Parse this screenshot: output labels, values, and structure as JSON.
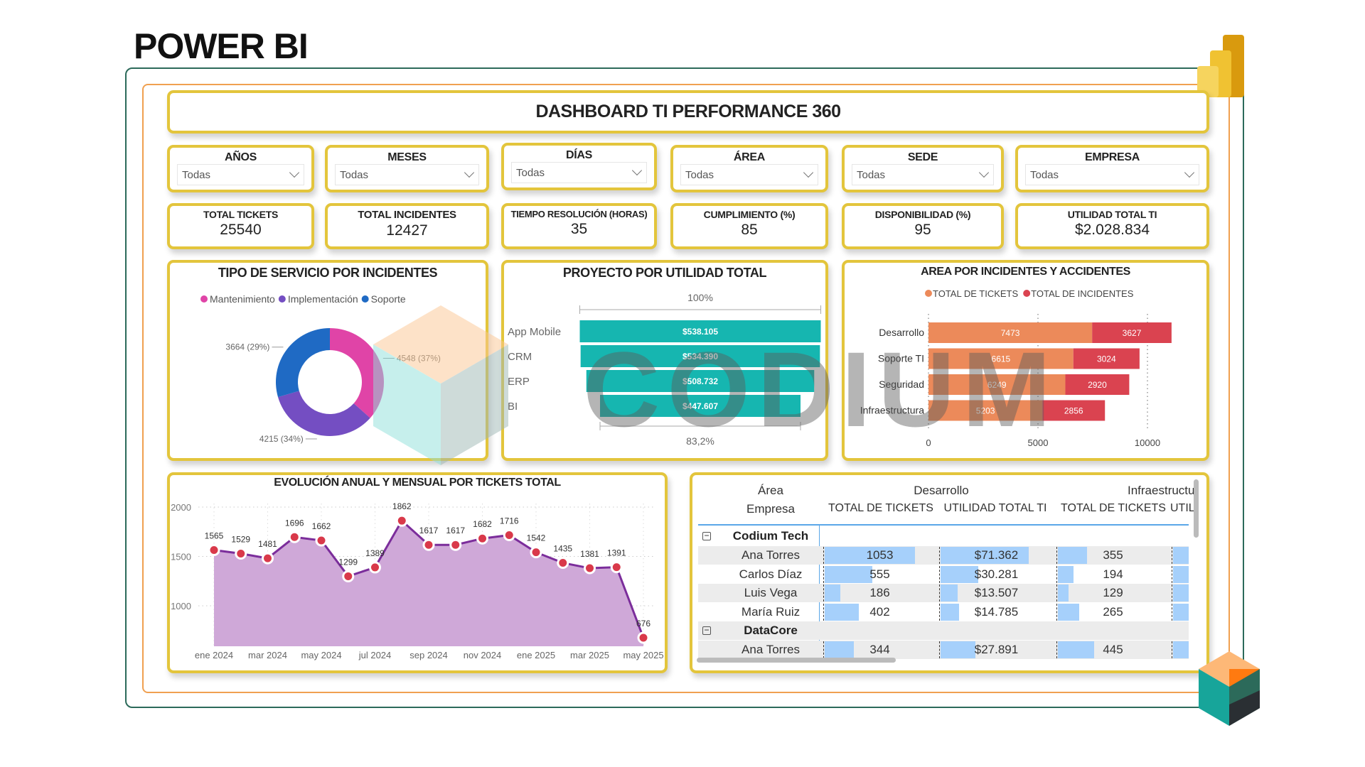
{
  "header": {
    "brand": "POWER BI"
  },
  "dashboard": {
    "title": "DASHBOARD TI PERFORMANCE 360"
  },
  "watermark": {
    "text": "CODIUM"
  },
  "filters": [
    {
      "label": "AÑOS",
      "value": "Todas"
    },
    {
      "label": "MESES",
      "value": "Todas"
    },
    {
      "label": "DÍAS",
      "value": "Todas"
    },
    {
      "label": "ÁREA",
      "value": "Todas"
    },
    {
      "label": "SEDE",
      "value": "Todas"
    },
    {
      "label": "EMPRESA",
      "value": "Todas"
    }
  ],
  "kpis": [
    {
      "label": "TOTAL TICKETS",
      "value": "25540"
    },
    {
      "label": "TOTAL INCIDENTES",
      "value": "12427"
    },
    {
      "label": "TIEMPO RESOLUCIÓN (HORAS)",
      "value": "35"
    },
    {
      "label": "CUMPLIMIENTO (%)",
      "value": "85"
    },
    {
      "label": "DISPONIBILIDAD (%)",
      "value": "95"
    },
    {
      "label": "UTILIDAD TOTAL TI",
      "value": "$2.028.834"
    }
  ],
  "chart_data": [
    {
      "type": "pie",
      "variant": "donut",
      "title": "TIPO DE SERVICIO POR INCIDENTES",
      "legend_position": "top",
      "categories": [
        "Mantenimiento",
        "Implementación",
        "Soporte"
      ],
      "values": [
        4548,
        4215,
        3664
      ],
      "percents": [
        "37%",
        "34%",
        "29%"
      ],
      "colors": [
        "#e044a7",
        "#744ec2",
        "#1f6ac4"
      ]
    },
    {
      "type": "bar",
      "variant": "funnel",
      "title": "PROYECTO POR UTILIDAD TOTAL",
      "categories": [
        "App Mobile",
        "CRM",
        "ERP",
        "BI"
      ],
      "values": [
        538105,
        534390,
        508732,
        447607
      ],
      "value_labels": [
        "$538.105",
        "$534.390",
        "$508.732",
        "$447.607"
      ],
      "top_label": "100%",
      "bottom_label": "83,2%",
      "color": "#16b6b0"
    },
    {
      "type": "bar",
      "variant": "stacked-horizontal",
      "title": "AREA POR INCIDENTES Y ACCIDENTES",
      "legend_position": "top",
      "grid": true,
      "categories": [
        "Desarrollo",
        "Soporte TI",
        "Seguridad",
        "Infraestructura"
      ],
      "series": [
        {
          "name": "TOTAL DE TICKETS",
          "values": [
            7473,
            6615,
            6249,
            5203
          ],
          "color": "#ec8a5a"
        },
        {
          "name": "TOTAL DE INCIDENTES",
          "values": [
            3627,
            3024,
            2920,
            2856
          ],
          "color": "#da4350"
        }
      ],
      "xlim": [
        0,
        11500
      ],
      "xticks": [
        "0",
        "5000",
        "10000"
      ]
    },
    {
      "type": "area",
      "title": "EVOLUCIÓN ANUAL Y MENSUAL POR TICKETS TOTAL",
      "grid": true,
      "x": [
        "ene 2024",
        "feb 2024",
        "mar 2024",
        "abr 2024",
        "may 2024",
        "jun 2024",
        "jul 2024",
        "ago 2024",
        "sep 2024",
        "oct 2024",
        "nov 2024",
        "dic 2024",
        "ene 2025",
        "feb 2025",
        "mar 2025",
        "abr 2025",
        "may 2025"
      ],
      "values": [
        1565,
        1529,
        1481,
        1696,
        1662,
        1299,
        1389,
        1862,
        1617,
        1617,
        1682,
        1716,
        1542,
        1435,
        1381,
        1391,
        676
      ],
      "xticks": [
        "ene 2024",
        "mar 2024",
        "may 2024",
        "jul 2024",
        "sep 2024",
        "nov 2024",
        "ene 2025",
        "mar 2025",
        "may 2025"
      ],
      "yticks": [
        "2000",
        "1500",
        "1000"
      ],
      "ylim": [
        590,
        2000
      ],
      "fill": "#cfa8d8",
      "line": "#7b2d9b",
      "marker": "#d9394a"
    }
  ],
  "table": {
    "row_headers": [
      "Área",
      "Empresa"
    ],
    "column_groups": [
      "Desarrollo",
      "Infraestructu"
    ],
    "columns": [
      "TOTAL DE TICKETS",
      "UTILIDAD TOTAL TI",
      "TOTAL DE TICKETS",
      "UTIL"
    ],
    "groups": [
      {
        "name": "Codium Tech",
        "rows": [
          {
            "name": "Ana Torres",
            "cells": [
              "1053",
              "$71.362",
              "355"
            ],
            "nums": [
              1053,
              71362,
              355
            ]
          },
          {
            "name": "Carlos Díaz",
            "cells": [
              "555",
              "$30.281",
              "194"
            ],
            "nums": [
              555,
              30281,
              194
            ]
          },
          {
            "name": "Luis Vega",
            "cells": [
              "186",
              "$13.507",
              "129"
            ],
            "nums": [
              186,
              13507,
              129
            ]
          },
          {
            "name": "María Ruiz",
            "cells": [
              "402",
              "$14.785",
              "265"
            ],
            "nums": [
              402,
              14785,
              265
            ]
          }
        ]
      },
      {
        "name": "DataCore",
        "rows": [
          {
            "name": "Ana Torres",
            "cells": [
              "344",
              "$27.891",
              "445"
            ],
            "nums": [
              344,
              27891,
              445
            ]
          }
        ]
      }
    ],
    "bar_color": "#a6d0fb"
  }
}
